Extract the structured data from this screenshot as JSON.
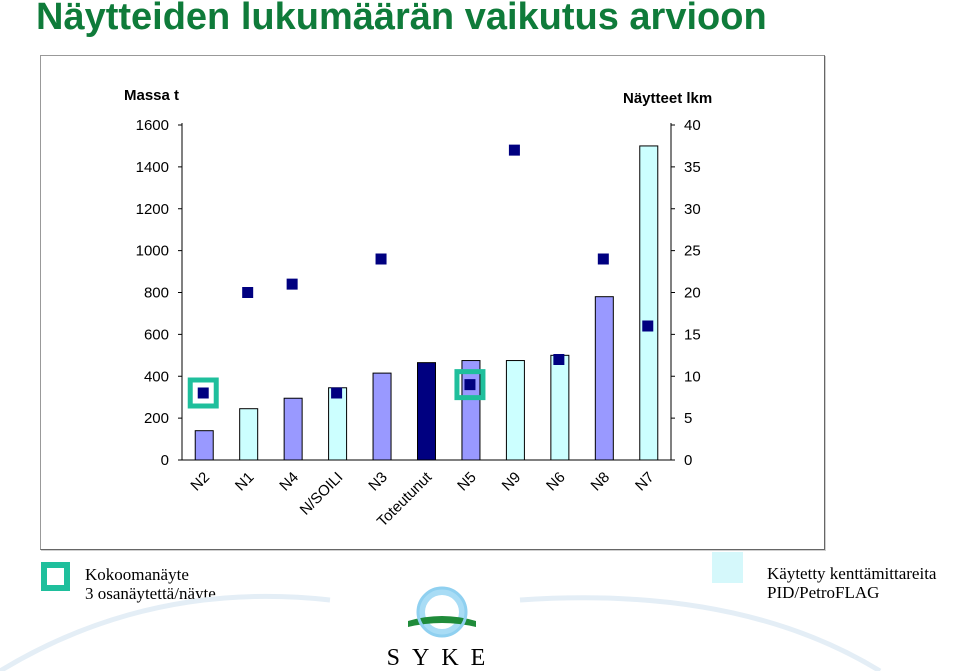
{
  "title": "Näytteiden lukumäärän vaikutus arvioon",
  "chart_data": {
    "type": "bar",
    "categories": [
      "N2",
      "N1",
      "N4",
      "N/SOILI",
      "N3",
      "Toteutunut",
      "N5",
      "N9",
      "N6",
      "N8",
      "N7"
    ],
    "left_axis": {
      "label": "Massa t",
      "ylim": [
        0,
        1600
      ],
      "ticks": [
        0,
        200,
        400,
        600,
        800,
        1000,
        1200,
        1400,
        1600
      ]
    },
    "right_axis": {
      "label": "Näytteet lkm",
      "ylim": [
        0,
        40
      ],
      "ticks": [
        0,
        5,
        10,
        15,
        20,
        25,
        30,
        35,
        40
      ]
    },
    "series": [
      {
        "name": "",
        "kind": "bar",
        "axis": "left",
        "values": [
          140,
          245,
          295,
          345,
          415,
          465,
          475,
          475,
          500,
          780,
          1500
        ],
        "colors": [
          "#9999ff",
          "#ccffff",
          "#9999ff",
          "#ccffff",
          "#9999ff",
          "#000080",
          "#9999ff",
          "#ccffff",
          "#ccffff",
          "#9999ff",
          "#ccffff"
        ]
      },
      {
        "name": "",
        "kind": "points",
        "axis": "right",
        "values": [
          8,
          20,
          21,
          8,
          24,
          null,
          9,
          37,
          12,
          24,
          16
        ],
        "color": "#000080"
      },
      {
        "name": "Kokoomanäyte",
        "kind": "highlight",
        "highlight_index": [
          0,
          6
        ],
        "color": "#1fbf9c"
      }
    ],
    "legend": [
      {
        "marker": "open-square",
        "color": "#1fbf9c",
        "lines": [
          "Kokoomanäyte",
          "3 osanäytettä/näyte"
        ],
        "placement": "bottom-left"
      },
      {
        "marker": "filled-square",
        "color": "#d5f8fb",
        "lines": [
          "Käytetty kenttämittareita",
          "PID/PetroFLAG"
        ],
        "placement": "bottom-right"
      }
    ],
    "grid": false
  },
  "logo": {
    "text": "SYKE"
  }
}
